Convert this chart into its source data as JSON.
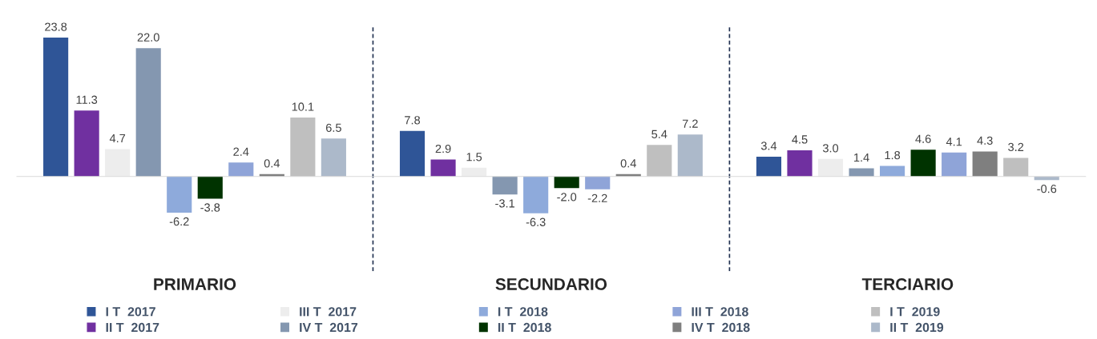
{
  "chart_data": {
    "type": "bar",
    "categories": [
      "PRIMARIO",
      "SECUNDARIO",
      "TERCIARIO"
    ],
    "series": [
      {
        "name": "I T  2017",
        "color": "#2f5597",
        "values": [
          23.8,
          7.8,
          3.4
        ],
        "value_labels": [
          "23.8",
          "7.8",
          "3.4"
        ]
      },
      {
        "name": "II T  2017",
        "color": "#7030a0",
        "values": [
          11.3,
          2.9,
          4.5
        ],
        "value_labels": [
          "11.3",
          "2.9",
          "4.5"
        ]
      },
      {
        "name": "III T  2017",
        "color": "#ededed",
        "values": [
          4.7,
          1.5,
          3.0
        ],
        "value_labels": [
          "4.7",
          "1.5",
          "3.0"
        ]
      },
      {
        "name": "IV T  2017",
        "color": "#8497b0",
        "values": [
          22.0,
          -3.1,
          1.4
        ],
        "value_labels": [
          "22.0",
          "-3.1",
          "1.4"
        ]
      },
      {
        "name": "I T  2018",
        "color": "#8eaadb",
        "values": [
          -6.2,
          -6.3,
          1.8
        ],
        "value_labels": [
          "-6.2",
          "-6.3",
          "1.8"
        ]
      },
      {
        "name": "II T  2018",
        "color": "#003300",
        "values": [
          -3.8,
          -2.0,
          4.6
        ],
        "value_labels": [
          "-3.8",
          "-2.0",
          "4.6"
        ]
      },
      {
        "name": "III T  2018",
        "color": "#8fa4d8",
        "values": [
          2.4,
          -2.2,
          4.1
        ],
        "value_labels": [
          "2.4",
          "-2.2",
          "4.1"
        ]
      },
      {
        "name": "IV T  2018",
        "color": "#7f7f7f",
        "values": [
          0.4,
          0.4,
          4.3
        ],
        "value_labels": [
          "0.4",
          "0.4",
          "4.3"
        ]
      },
      {
        "name": "I T  2019",
        "color": "#bfbfbf",
        "values": [
          10.1,
          5.4,
          3.2
        ],
        "value_labels": [
          "10.1",
          "5.4",
          "3.2"
        ]
      },
      {
        "name": "II T  2019",
        "color": "#acb9ca",
        "values": [
          6.5,
          7.2,
          -0.6
        ],
        "value_labels": [
          "6.5",
          "7.2",
          "-0.6"
        ]
      }
    ],
    "legend": "bottom",
    "grid": false
  }
}
